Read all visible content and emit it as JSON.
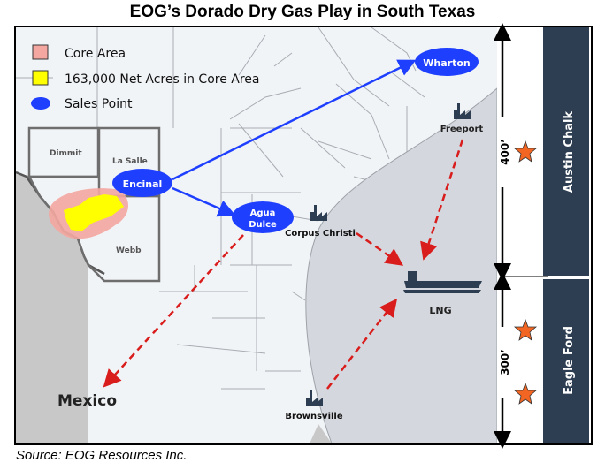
{
  "title": "EOG’s Dorado Dry Gas Play in South Texas",
  "source": "Source: EOG Resources Inc.",
  "legend": [
    {
      "label": "Core Area",
      "color": "#f4a6a0"
    },
    {
      "label": "163,000 Net Acres in Core Area",
      "color": "#ffff00"
    },
    {
      "label": "Sales Point",
      "color": "#1f3fff"
    }
  ],
  "counties": {
    "dimmit": "Dimmit",
    "lasalle": "La Salle",
    "webb": "Webb"
  },
  "sales_points": {
    "encinal": "Encinal",
    "agua_dulce": "Agua Dulce",
    "wharton": "Wharton"
  },
  "facilities": {
    "freeport": "Freeport",
    "corpus": "Corpus Christi",
    "brownsville": "Brownsville",
    "lng": "LNG"
  },
  "mexico": "Mexico",
  "strat": {
    "austin_chalk": "Austin Chalk",
    "eagle_ford": "Eagle Ford",
    "thickness_top": "400’",
    "thickness_bottom": "300’"
  },
  "colors": {
    "arrow_blue": "#1f3fff",
    "arrow_red": "#d91c1c",
    "panel": "#2e3e52",
    "star": "#f26522",
    "gulf": "#d4d8de",
    "land": "#f1f4f7"
  }
}
